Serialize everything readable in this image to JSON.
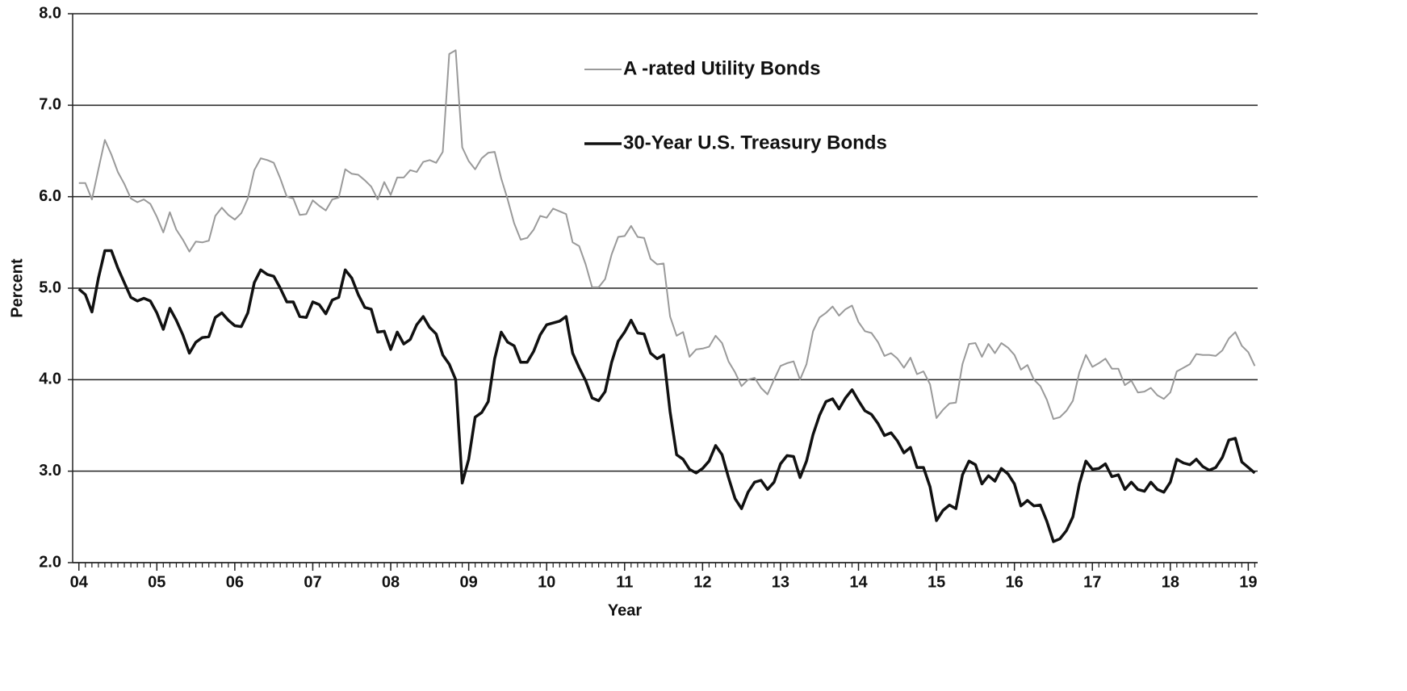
{
  "chart_data": {
    "type": "line",
    "x_label": "Year",
    "y_label": "Percent",
    "x": [
      2004,
      2004.083,
      2004.167,
      2004.25,
      2004.333,
      2004.417,
      2004.5,
      2004.583,
      2004.667,
      2004.75,
      2004.833,
      2004.917,
      2005,
      2005.083,
      2005.167,
      2005.25,
      2005.333,
      2005.417,
      2005.5,
      2005.583,
      2005.667,
      2005.75,
      2005.833,
      2005.917,
      2006,
      2006.083,
      2006.167,
      2006.25,
      2006.333,
      2006.417,
      2006.5,
      2006.583,
      2006.667,
      2006.75,
      2006.833,
      2006.917,
      2007,
      2007.083,
      2007.167,
      2007.25,
      2007.333,
      2007.417,
      2007.5,
      2007.583,
      2007.667,
      2007.75,
      2007.833,
      2007.917,
      2008,
      2008.083,
      2008.167,
      2008.25,
      2008.333,
      2008.417,
      2008.5,
      2008.583,
      2008.667,
      2008.75,
      2008.833,
      2008.917,
      2009,
      2009.083,
      2009.167,
      2009.25,
      2009.333,
      2009.417,
      2009.5,
      2009.583,
      2009.667,
      2009.75,
      2009.833,
      2009.917,
      2010,
      2010.083,
      2010.167,
      2010.25,
      2010.333,
      2010.417,
      2010.5,
      2010.583,
      2010.667,
      2010.75,
      2010.833,
      2010.917,
      2011,
      2011.083,
      2011.167,
      2011.25,
      2011.333,
      2011.417,
      2011.5,
      2011.583,
      2011.667,
      2011.75,
      2011.833,
      2011.917,
      2012,
      2012.083,
      2012.167,
      2012.25,
      2012.333,
      2012.417,
      2012.5,
      2012.583,
      2012.667,
      2012.75,
      2012.833,
      2012.917,
      2013,
      2013.083,
      2013.167,
      2013.25,
      2013.333,
      2013.417,
      2013.5,
      2013.583,
      2013.667,
      2013.75,
      2013.833,
      2013.917,
      2014,
      2014.083,
      2014.167,
      2014.25,
      2014.333,
      2014.417,
      2014.5,
      2014.583,
      2014.667,
      2014.75,
      2014.833,
      2014.917,
      2015,
      2015.083,
      2015.167,
      2015.25,
      2015.333,
      2015.417,
      2015.5,
      2015.583,
      2015.667,
      2015.75,
      2015.833,
      2015.917,
      2016,
      2016.083,
      2016.167,
      2016.25,
      2016.333,
      2016.417,
      2016.5,
      2016.583,
      2016.667,
      2016.75,
      2016.833,
      2016.917,
      2017,
      2017.083,
      2017.167,
      2017.25,
      2017.333,
      2017.417,
      2017.5,
      2017.583,
      2017.667,
      2017.75,
      2017.833,
      2017.917,
      2018,
      2018.083,
      2018.167,
      2018.25,
      2018.333,
      2018.417,
      2018.5,
      2018.583,
      2018.667,
      2018.75,
      2018.833,
      2018.917,
      2019,
      2019.083
    ],
    "series": [
      {
        "name": "A -rated Utility Bonds",
        "color": "#9a9a9a",
        "values": [
          6.15,
          6.15,
          5.97,
          6.3,
          6.62,
          6.46,
          6.27,
          6.14,
          5.98,
          5.94,
          5.97,
          5.92,
          5.78,
          5.61,
          5.83,
          5.64,
          5.53,
          5.4,
          5.51,
          5.5,
          5.52,
          5.79,
          5.88,
          5.8,
          5.75,
          5.82,
          5.98,
          6.29,
          6.42,
          6.4,
          6.37,
          6.2,
          6.0,
          5.98,
          5.8,
          5.81,
          5.96,
          5.9,
          5.85,
          5.97,
          5.99,
          6.3,
          6.25,
          6.24,
          6.18,
          6.11,
          5.97,
          6.16,
          6.02,
          6.21,
          6.21,
          6.29,
          6.27,
          6.38,
          6.4,
          6.37,
          6.49,
          7.56,
          7.6,
          6.54,
          6.39,
          6.3,
          6.42,
          6.48,
          6.49,
          6.2,
          5.97,
          5.71,
          5.53,
          5.55,
          5.64,
          5.79,
          5.77,
          5.87,
          5.84,
          5.81,
          5.5,
          5.46,
          5.26,
          5.01,
          5.01,
          5.1,
          5.37,
          5.56,
          5.57,
          5.68,
          5.56,
          5.55,
          5.32,
          5.26,
          5.27,
          4.69,
          4.48,
          4.52,
          4.25,
          4.33,
          4.34,
          4.36,
          4.48,
          4.4,
          4.2,
          4.08,
          3.93,
          4.0,
          4.02,
          3.91,
          3.84,
          4.0,
          4.15,
          4.18,
          4.2,
          4.0,
          4.17,
          4.53,
          4.68,
          4.73,
          4.8,
          4.7,
          4.77,
          4.81,
          4.63,
          4.53,
          4.51,
          4.41,
          4.26,
          4.29,
          4.23,
          4.13,
          4.24,
          4.06,
          4.09,
          3.95,
          3.58,
          3.67,
          3.74,
          3.75,
          4.17,
          4.39,
          4.4,
          4.25,
          4.39,
          4.29,
          4.4,
          4.35,
          4.27,
          4.11,
          4.16,
          4.0,
          3.93,
          3.78,
          3.57,
          3.59,
          3.66,
          3.77,
          4.08,
          4.27,
          4.14,
          4.18,
          4.23,
          4.12,
          4.12,
          3.94,
          3.99,
          3.86,
          3.87,
          3.91,
          3.83,
          3.79,
          3.86,
          4.09,
          4.13,
          4.17,
          4.28,
          4.27,
          4.27,
          4.26,
          4.32,
          4.45,
          4.52,
          4.37,
          4.3,
          4.15
        ]
      },
      {
        "name": "30-Year U.S. Treasury Bonds",
        "color": "#111111",
        "values": [
          4.99,
          4.93,
          4.74,
          5.11,
          5.41,
          5.41,
          5.22,
          5.06,
          4.9,
          4.86,
          4.89,
          4.86,
          4.73,
          4.55,
          4.78,
          4.65,
          4.49,
          4.29,
          4.41,
          4.46,
          4.47,
          4.68,
          4.73,
          4.65,
          4.59,
          4.58,
          4.73,
          5.06,
          5.2,
          5.15,
          5.13,
          5.0,
          4.85,
          4.85,
          4.69,
          4.68,
          4.85,
          4.82,
          4.72,
          4.87,
          4.9,
          5.2,
          5.11,
          4.93,
          4.79,
          4.77,
          4.52,
          4.53,
          4.33,
          4.52,
          4.39,
          4.44,
          4.6,
          4.69,
          4.57,
          4.5,
          4.27,
          4.17,
          4.0,
          2.87,
          3.13,
          3.59,
          3.64,
          3.76,
          4.23,
          4.52,
          4.41,
          4.37,
          4.19,
          4.19,
          4.31,
          4.49,
          4.6,
          4.62,
          4.64,
          4.69,
          4.29,
          4.13,
          3.99,
          3.8,
          3.77,
          3.87,
          4.19,
          4.42,
          4.52,
          4.65,
          4.51,
          4.5,
          4.29,
          4.23,
          4.27,
          3.65,
          3.18,
          3.13,
          3.02,
          2.98,
          3.03,
          3.11,
          3.28,
          3.18,
          2.93,
          2.7,
          2.59,
          2.77,
          2.88,
          2.9,
          2.8,
          2.88,
          3.08,
          3.17,
          3.16,
          2.93,
          3.11,
          3.4,
          3.61,
          3.76,
          3.79,
          3.68,
          3.8,
          3.89,
          3.77,
          3.66,
          3.62,
          3.52,
          3.39,
          3.42,
          3.33,
          3.2,
          3.26,
          3.04,
          3.04,
          2.83,
          2.46,
          2.57,
          2.63,
          2.59,
          2.96,
          3.11,
          3.07,
          2.86,
          2.95,
          2.89,
          3.03,
          2.97,
          2.86,
          2.62,
          2.68,
          2.62,
          2.63,
          2.45,
          2.23,
          2.26,
          2.35,
          2.5,
          2.86,
          3.11,
          3.02,
          3.03,
          3.08,
          2.94,
          2.96,
          2.8,
          2.88,
          2.8,
          2.78,
          2.88,
          2.8,
          2.77,
          2.88,
          3.13,
          3.09,
          3.07,
          3.13,
          3.05,
          3.01,
          3.04,
          3.15,
          3.34,
          3.36,
          3.1,
          3.04,
          2.98
        ]
      }
    ],
    "xlim": [
      2003.92,
      2019.12
    ],
    "xticks": [
      {
        "value": 2004,
        "label": "04"
      },
      {
        "value": 2005,
        "label": "05"
      },
      {
        "value": 2006,
        "label": "06"
      },
      {
        "value": 2007,
        "label": "07"
      },
      {
        "value": 2008,
        "label": "08"
      },
      {
        "value": 2009,
        "label": "09"
      },
      {
        "value": 2010,
        "label": "10"
      },
      {
        "value": 2011,
        "label": "11"
      },
      {
        "value": 2012,
        "label": "12"
      },
      {
        "value": 2013,
        "label": "13"
      },
      {
        "value": 2014,
        "label": "14"
      },
      {
        "value": 2015,
        "label": "15"
      },
      {
        "value": 2016,
        "label": "16"
      },
      {
        "value": 2017,
        "label": "17"
      },
      {
        "value": 2018,
        "label": "18"
      },
      {
        "value": 2019,
        "label": "19"
      }
    ],
    "ylim": [
      2,
      8
    ],
    "yticks": [
      {
        "value": 2,
        "label": "2.0"
      },
      {
        "value": 3,
        "label": "3.0"
      },
      {
        "value": 4,
        "label": "4.0"
      },
      {
        "value": 5,
        "label": "5.0"
      },
      {
        "value": 6,
        "label": "6.0"
      },
      {
        "value": 7,
        "label": "7.0"
      },
      {
        "value": 8,
        "label": "8.0"
      }
    ],
    "grid": true,
    "legend": "top"
  }
}
